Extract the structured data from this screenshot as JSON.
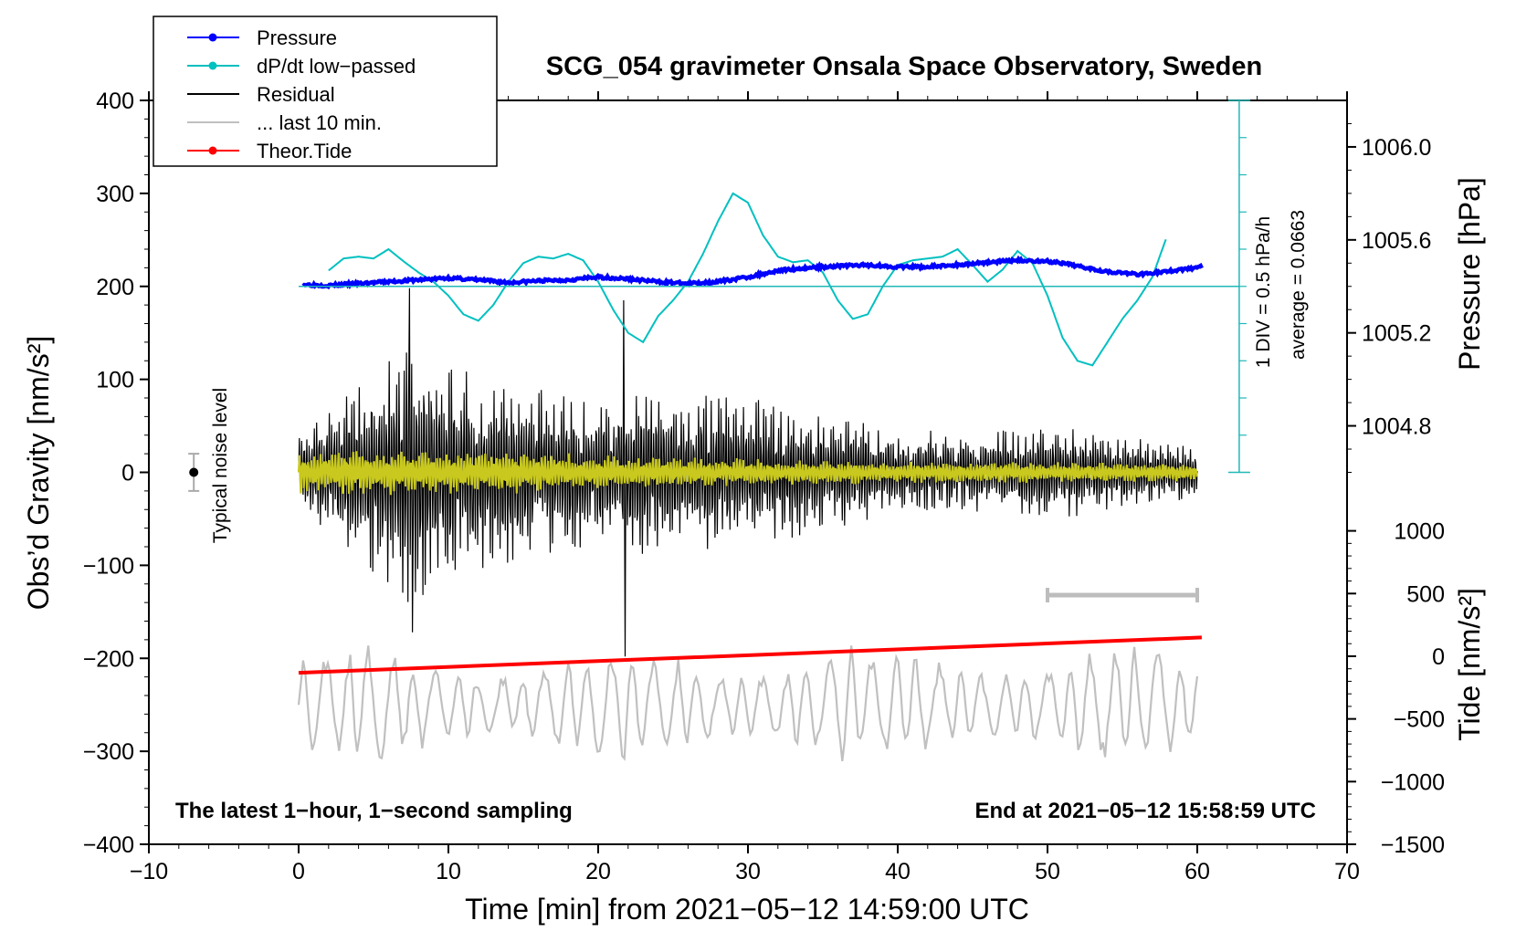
{
  "chart_data": {
    "type": "line",
    "title": "SCG_054 gravimeter Onsala Space Observatory, Sweden",
    "xlabel": "Time [min] from 2021−05−12 14:59:00 UTC",
    "ylabel_left": "Obs’d Gravity [nm/s²]",
    "ylabel_right_pressure": "Pressure [hPa]",
    "ylabel_right_tide": "Tide [nm/s²]",
    "xlim": [
      -10,
      70
    ],
    "ylim": [
      -400,
      400
    ],
    "x_ticks": [
      -10,
      0,
      10,
      20,
      30,
      40,
      50,
      60,
      70
    ],
    "x_tick_labels": [
      "−10",
      "0",
      "10",
      "20",
      "30",
      "40",
      "50",
      "60",
      "70"
    ],
    "y_ticks": [
      -400,
      -300,
      -200,
      -100,
      0,
      100,
      200,
      300,
      400
    ],
    "y_tick_labels": [
      "−400",
      "−300",
      "−200",
      "−100",
      "0",
      "100",
      "200",
      "300",
      "400"
    ],
    "pressure_axis": {
      "ticks": [
        1004.8,
        1005.2,
        1005.6,
        1006.0
      ],
      "labels": [
        "1004.8",
        "1005.2",
        "1005.6",
        "1006.0"
      ],
      "g_per_hpa": 250,
      "ref_hpa": 1005.4,
      "ref_g": 200
    },
    "tide_axis": {
      "ticks": [
        -1500,
        -1000,
        -500,
        0,
        500,
        1000
      ],
      "labels": [
        "−1500",
        "−1000",
        "−500",
        "0",
        "500",
        "1000"
      ],
      "tide_at_g_min": -1500,
      "g_per_tide": 0.13483
    },
    "legend": {
      "position": "top-left",
      "entries": [
        {
          "label": "Pressure",
          "color": "#0000ff",
          "marker": true
        },
        {
          "label": "dP/dt low−passed",
          "color": "#00c0c0",
          "marker": true
        },
        {
          "label": "Residual",
          "color": "#000000",
          "marker": false
        },
        {
          "label": "... last 10 min.",
          "color": "#c0c0c0",
          "marker": false
        },
        {
          "label": "Theor.Tide",
          "color": "#ff0000",
          "marker": true
        }
      ]
    },
    "series": [
      {
        "name": "Pressure",
        "color": "#0000ff",
        "x": [
          0.3,
          2,
          4,
          6,
          8,
          10,
          12,
          14,
          16,
          18,
          20,
          22,
          24,
          26,
          28,
          30,
          32,
          34,
          36,
          38,
          40,
          42,
          44,
          46,
          48,
          50,
          52,
          54,
          56,
          58,
          60.3
        ],
        "y": [
          202,
          201,
          203,
          205,
          207,
          209,
          207,
          204,
          206,
          207,
          210,
          208,
          205,
          203,
          205,
          210,
          217,
          220,
          222,
          223,
          221,
          221,
          223,
          226,
          228,
          227,
          222,
          216,
          213,
          216,
          221
        ]
      },
      {
        "name": "dP/dt low-passed",
        "color": "#00c0c0",
        "x": [
          2,
          3,
          4,
          5,
          6,
          7,
          8,
          9,
          10,
          11,
          12,
          13,
          14,
          15,
          16,
          17,
          18,
          19,
          20,
          21,
          22,
          23,
          24,
          25,
          26,
          27,
          28,
          29,
          30,
          31,
          32,
          33,
          34,
          35,
          36,
          37,
          38,
          39,
          40,
          41,
          42,
          43,
          44,
          45,
          46,
          47,
          48,
          49,
          50,
          51,
          52,
          53,
          54,
          55,
          56,
          57,
          58
        ],
        "y": [
          217,
          230,
          232,
          230,
          240,
          227,
          215,
          205,
          190,
          170,
          163,
          180,
          205,
          225,
          232,
          230,
          235,
          228,
          205,
          175,
          150,
          140,
          168,
          185,
          205,
          235,
          270,
          300,
          290,
          255,
          232,
          226,
          228,
          215,
          185,
          165,
          170,
          200,
          223,
          228,
          230,
          232,
          240,
          223,
          205,
          218,
          238,
          225,
          190,
          145,
          120,
          115,
          140,
          165,
          185,
          210,
          255
        ]
      },
      {
        "name": "Residual",
        "color": "#000000",
        "note": "1 Hz oscillating residual; envelope shown (half-amplitude in nm/s² by minute)",
        "x": [
          0,
          5,
          7.5,
          10,
          12,
          15,
          18,
          20,
          22,
          25,
          30,
          35,
          40,
          45,
          50,
          55,
          60
        ],
        "y": [
          40,
          120,
          150,
          120,
          110,
          100,
          90,
          85,
          95,
          90,
          85,
          65,
          50,
          45,
          55,
          40,
          30
        ],
        "spikes": [
          {
            "x": 7.4,
            "y": 198
          },
          {
            "x": 7.6,
            "y": -172
          },
          {
            "x": 21.7,
            "y": 185
          },
          {
            "x": 21.8,
            "y": -198
          }
        ]
      },
      {
        "name": "Residual low-passed",
        "color": "#c8c81e",
        "x": [
          0,
          10,
          20,
          30,
          40,
          50,
          60
        ],
        "y": [
          25,
          25,
          20,
          15,
          12,
          12,
          10
        ]
      },
      {
        "name": "... last 10 min.",
        "color": "#c0c0c0",
        "note": "last-10-min residual trace, offset and scaled; plotted around g = -250",
        "x": [
          0,
          10,
          20,
          22,
          30,
          40,
          50,
          60
        ],
        "y": [
          -250,
          -250,
          -250,
          -250,
          -250,
          -250,
          -250,
          -250
        ]
      },
      {
        "name": "Theor.Tide",
        "color": "#ff0000",
        "x": [
          0,
          60.3
        ],
        "y": [
          -132,
          150
        ]
      }
    ],
    "annotations": {
      "footer_left": "The latest 1−hour, 1−second sampling",
      "footer_right": "End at 2021−05−12 15:58:59 UTC",
      "noise_label": "Typical noise level",
      "noise_bar": {
        "x": -7,
        "y": 0,
        "half_range": 20
      },
      "pressure_scale_label": "1 DIV = 0.5 hPa/h",
      "average_label": "average = 0.0663",
      "baseline_g": 200,
      "last10_bar": {
        "x_start": 50,
        "x_end": 60,
        "y": -132
      }
    }
  }
}
